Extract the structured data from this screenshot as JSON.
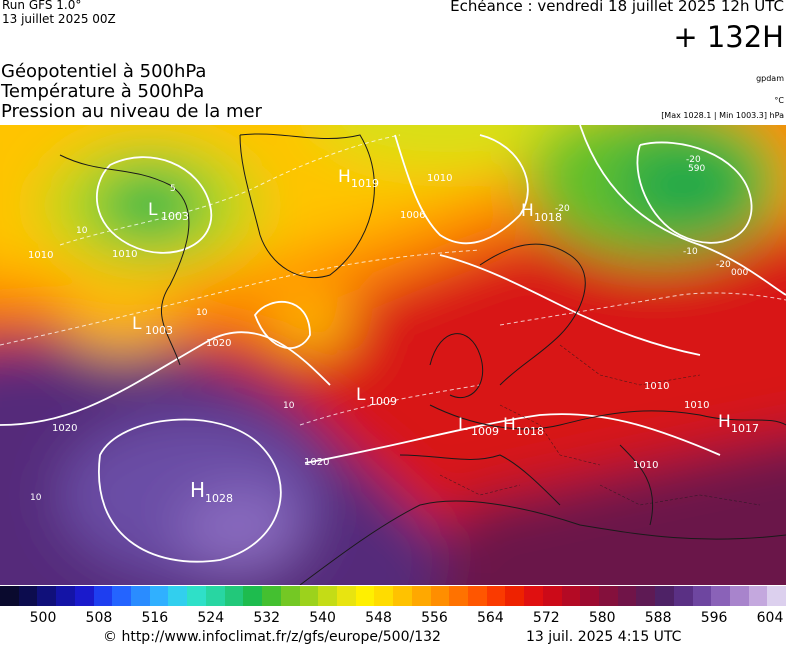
{
  "header": {
    "run": "Run GFS 1.0°",
    "run_date": "13 juillet 2025 00Z",
    "valid": "Echéance : vendredi 18 juillet 2025 12h UTC",
    "forecast_hour": "+ 132H",
    "params": [
      "Géopotentiel à 500hPa",
      "Température à 500hPa",
      "Pression au niveau de la mer"
    ],
    "units": [
      "gpdam",
      "°C",
      "[Max 1028.1 | Min 1003.3] hPa"
    ]
  },
  "map": {
    "pressure_centers": [
      {
        "type": "L",
        "value": "1003"
      },
      {
        "type": "H",
        "value": "1019"
      },
      {
        "type": "H",
        "value": "1018"
      },
      {
        "type": "L",
        "value": "1003"
      },
      {
        "type": "L",
        "value": "1009"
      },
      {
        "type": "L",
        "value": "1009"
      },
      {
        "type": "H",
        "value": "1018"
      },
      {
        "type": "H",
        "value": "1017"
      },
      {
        "type": "H",
        "value": "1028"
      }
    ],
    "isobar_labels": [
      "1010",
      "1006",
      "1010",
      "1020",
      "1020",
      "1020",
      "1010",
      "1010",
      "1010",
      "1010"
    ],
    "isotherm_labels": [
      "10",
      "-20",
      "-20",
      "-20",
      "-10",
      "10",
      "10",
      "10"
    ],
    "geopotential_labels": [
      "5",
      "590",
      "000"
    ]
  },
  "colorbar": {
    "ticks": [
      "500",
      "508",
      "516",
      "524",
      "532",
      "540",
      "548",
      "556",
      "564",
      "572",
      "580",
      "588",
      "596",
      "604"
    ],
    "colors": [
      "#0a0a2e",
      "#0c0c4e",
      "#10107a",
      "#1414a6",
      "#1a1acc",
      "#1e3ef0",
      "#2464ff",
      "#2a8cff",
      "#30b0ff",
      "#32cfee",
      "#2fe0c8",
      "#28d6a2",
      "#22c87a",
      "#1ebc4e",
      "#44c030",
      "#74c824",
      "#9cd21c",
      "#c4dc16",
      "#e8e410",
      "#fff000",
      "#ffdc00",
      "#ffc200",
      "#ffa800",
      "#ff8e00",
      "#ff7200",
      "#ff5600",
      "#fa3a00",
      "#ee2200",
      "#e01010",
      "#cc0a18",
      "#b40a24",
      "#9c0a30",
      "#84103c",
      "#701448",
      "#5e1a54",
      "#4e2266",
      "#5a3084",
      "#6e46a0",
      "#8a62b8",
      "#a884cc",
      "#c4a8de",
      "#dcd0ee"
    ],
    "url": "© http://www.infoclimat.fr/z/gfs/europe/500/132",
    "date": "13 juil. 2025  4:15 UTC"
  }
}
